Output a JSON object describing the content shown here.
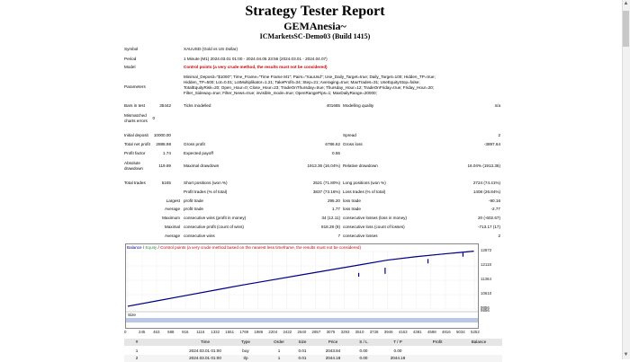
{
  "header": {
    "title": "Strategy Tester Report",
    "name": "GEMAnesia~",
    "server": "ICMarketsSC-Demo03 (Build 1415)"
  },
  "settings": {
    "symbol_label": "Symbol",
    "symbol_value": "XAUUSD (Gold vs US Dollar)",
    "period_label": "Period",
    "period_value": "1 Minute (M1) 2024.03.01 01:00 - 2024.04.05 23:56 (2024.03.01 - 2024.04.07)",
    "model_label": "Model",
    "model_value": "Control points (a very crude method, the results must not be considered)",
    "params_label": "Parameters",
    "params_lines": [
      "Minimal_Deposit=\"$1000\"; Time_Frame=\"Time Frame M1\"; Pairs=\"XauUsd\"; Use_Daily_Target=true; Daily_Target=100; Hidden_TP=true;",
      "Hidden_TP=500; Lot=0.01; LotMultiplikator=1.21; TakeProfit=34; Step=21; Averaging=true; MaxTrades=31; UseEquityStop=false;",
      "TotalEquityRisk=20; Open_Hour=0; Close_Hour=23; TradeOnThursday=true; Thursday_Hour=12; TradeOnFriday=true; Friday_Hour=20;",
      "Filter_Sideway=true; Filter_News=true; invisible_mode=true; OpenRangePips=1; MaxDailyRange=20000;"
    ]
  },
  "stats": {
    "bars_label": "Bars in test",
    "bars_value": "35442",
    "ticks_label": "Ticks modelled",
    "ticks_value": "401665",
    "quality_label": "Modelling quality",
    "quality_value": "n/a",
    "mismatch_label_1": "Mismatched",
    "mismatch_label_2": "charts errors",
    "mismatch_value": "0",
    "deposit_label": "Initial deposit",
    "deposit_value": "10000.00",
    "spread_label": "Spread",
    "spread_value": "2",
    "netprofit_label": "Total net profit",
    "netprofit_value": "2888.98",
    "grossprofit_label": "Gross profit",
    "grossprofit_value": "6786.62",
    "grossloss_label": "Gross loss",
    "grossloss_value": "-3897.64",
    "pf_label": "Profit factor",
    "pf_value": "1.74",
    "payoff_label": "Expected payoff",
    "payoff_value": "0.55",
    "absdd_label_1": "Absolute",
    "absdd_label_2": "drawdown",
    "absdd_value": "119.69",
    "maxdd_label": "Maximal drawdown",
    "maxdd_value": "1913.36 (16.04%)",
    "reldd_label": "Relative drawdown",
    "reldd_value": "16.04% (1913.36)",
    "trades_label": "Total trades",
    "trades_value": "5245",
    "short_label": "Short positions (won %)",
    "short_value": "2521 (71.80%)",
    "long_label": "Long positions (won %)",
    "long_value": "2724 (74.41%)",
    "ptrades_label": "Profit trades (% of total)",
    "ptrades_value": "3837 (73.16%)",
    "ltrades_label": "Loss trades (% of total)",
    "ltrades_value": "1408 (26.84%)",
    "largest_label": "Largest",
    "lp_label": "profit trade",
    "lp_value": "295.20",
    "ll_label": "loss trade",
    "ll_value": "-90.16",
    "average_label": "Average",
    "ap_label": "profit trade",
    "ap_value": "1.77",
    "al_label": "loss trade",
    "al_value": "-2.77",
    "maximum_label": "Maximum",
    "mcw_label": "consecutive wins (profit in money)",
    "mcw_value": "34 (12.11)",
    "mcl_label": "consecutive losses (loss in money)",
    "mcl_value": "20 (-602.67)",
    "maximal_label": "Maximal",
    "mcp_label": "consecutive profit (count of wins)",
    "mcp_value": "818.28 (9)",
    "mcloss_label": "consecutive loss (count of losses)",
    "mcloss_value": "-713.17 (17)",
    "average2_label": "Average",
    "acw_label": "consecutive wins",
    "acw_value": "7",
    "acl_label": "consecutive losses",
    "acl_value": "2"
  },
  "graph": {
    "legend_balance": "Balance",
    "legend_sep": " / ",
    "legend_equity": "Equity",
    "legend_sep2": " / ",
    "legend_note": "Control points (a very crude method based on the nearest less timeframe, the results must not be considered)",
    "size_label": "Size",
    "y_ticks": [
      "12872",
      "12118",
      "11364",
      "10610",
      "9856"
    ],
    "x_ticks": [
      "0",
      "245",
      "463",
      "688",
      "916",
      "1116",
      "1332",
      "1551",
      "1769",
      "1986",
      "2204",
      "2422",
      "2640",
      "2857",
      "3075",
      "3293",
      "3510",
      "3728",
      "3946",
      "4163",
      "4381",
      "4598",
      "4816",
      "5034",
      "5252"
    ],
    "balance_color": "#00008b",
    "equity_color": "#3a8f3a"
  },
  "chart_data": {
    "type": "line",
    "series": [
      {
        "name": "Balance",
        "values": [
          10000,
          10280,
          10560,
          10840,
          11120,
          11380,
          11640,
          11900,
          12160,
          12420,
          12600,
          12750,
          12888.98
        ]
      }
    ],
    "x": [
      0,
      437,
      874,
      1311,
      1748,
      2185,
      2622,
      3059,
      3496,
      3933,
      4370,
      4807,
      5245
    ],
    "ylabel": "",
    "xlabel": "",
    "ylim": [
      9856,
      12872
    ]
  },
  "trades_table": {
    "columns": [
      "#",
      "Time",
      "Type",
      "Order",
      "Size",
      "Price",
      "S / L",
      "T / P",
      "Profit",
      "Balance"
    ],
    "rows": [
      [
        "1",
        "2024.03.01 01:00",
        "buy",
        "1",
        "0.01",
        "2043.84",
        "0.00",
        "0.00",
        "",
        ""
      ],
      [
        "2",
        "2024.03.01 01:00",
        "t/p",
        "1",
        "0.01",
        "2044.18",
        "0.00",
        "2044.18",
        "",
        ""
      ]
    ]
  }
}
